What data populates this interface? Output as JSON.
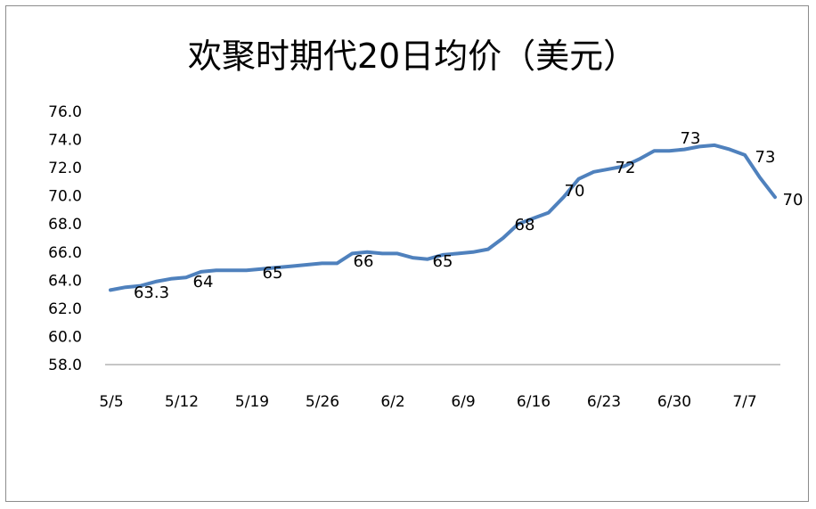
{
  "chart_data": {
    "type": "line",
    "title": "欢聚时期代20日均价（美元）",
    "xlabel": "",
    "ylabel": "",
    "ylim": [
      58,
      76
    ],
    "yticks": [
      "58.0",
      "60.0",
      "62.0",
      "64.0",
      "66.0",
      "68.0",
      "70.0",
      "72.0",
      "74.0",
      "76.0"
    ],
    "xticks": [
      "5/5",
      "5/12",
      "5/19",
      "5/26",
      "6/2",
      "6/9",
      "6/16",
      "6/23",
      "6/30",
      "7/7"
    ],
    "grid": false,
    "legend": "none",
    "line_color": "#4f81bd",
    "series": [
      {
        "values": [
          63.3,
          63.5,
          63.6,
          63.9,
          64.1,
          64.2,
          64.6,
          64.7,
          64.7,
          64.7,
          64.8,
          64.9,
          65.0,
          65.1,
          65.2,
          65.2,
          65.9,
          66.0,
          65.9,
          65.9,
          65.6,
          65.5,
          65.8,
          65.9,
          66.0,
          66.2,
          67.0,
          68.0,
          68.4,
          68.8,
          69.9,
          71.2,
          71.7,
          71.9,
          72.1,
          72.6,
          73.2,
          73.2,
          73.3,
          73.5,
          73.6,
          73.3,
          72.9,
          71.3,
          69.9
        ]
      }
    ],
    "data_labels": [
      {
        "index": 2,
        "text": "63.3"
      },
      {
        "index": 7,
        "text": "64"
      },
      {
        "index": 13,
        "text": "65"
      },
      {
        "index": 20,
        "text": "66"
      },
      {
        "index": 26,
        "text": "65"
      },
      {
        "index": 32,
        "text": "68"
      },
      {
        "index": 37,
        "text": "70"
      },
      {
        "index": 41,
        "text": "72"
      },
      {
        "index": 46,
        "text": "73"
      },
      {
        "index": 51,
        "text": "73"
      },
      {
        "index": 54,
        "text": "70"
      }
    ]
  }
}
